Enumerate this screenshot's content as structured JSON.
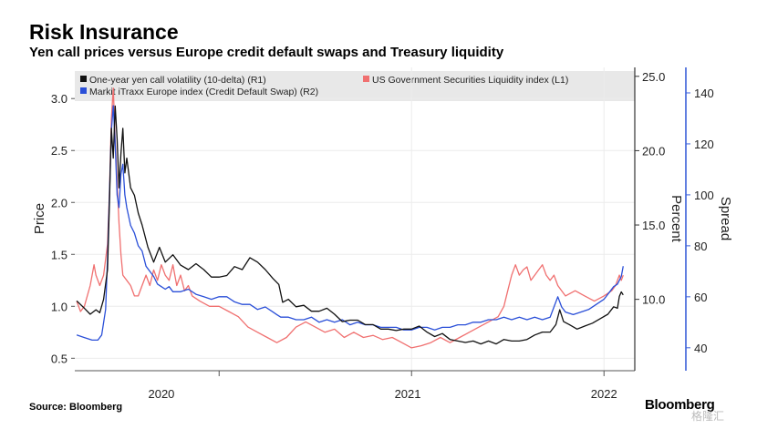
{
  "header": {
    "title": "Risk Insurance",
    "subtitle": "Yen call prices versus Europe credit default swaps and Treasury liquidity"
  },
  "footer": {
    "source": "Source: Bloomberg",
    "brand": "Bloomberg",
    "watermark": "格隆汇"
  },
  "chart_data": {
    "type": "line",
    "x_ticks": [
      "2020",
      "2021",
      "2022"
    ],
    "x_range": [
      2019.25,
      2022.16
    ],
    "axes": {
      "left": {
        "label": "Price",
        "range": [
          0.38,
          3.3
        ],
        "ticks": [
          "0.5",
          "1.0",
          "1.5",
          "2.0",
          "2.5",
          "3.0"
        ]
      },
      "right1": {
        "label": "Percent",
        "range": [
          5.2,
          25.6
        ],
        "ticks": [
          "10.0",
          "15.0",
          "20.0",
          "25.0"
        ]
      },
      "right2": {
        "label": "Spread",
        "range": [
          31,
          150
        ],
        "ticks": [
          "40",
          "60",
          "80",
          "100",
          "120",
          "140"
        ],
        "color": "#3a5fd9"
      }
    },
    "legend": {
      "placement": "top",
      "entries": [
        "One-year yen call volatility (10-delta)    (R1)",
        "US Government Securities Liquidity index (L1)",
        "Markit iTraxx Europe index (Credit Default Swap) (R2)"
      ]
    },
    "colors": {
      "black": "#111111",
      "red": "#f07070",
      "blue": "#2a4fd8"
    },
    "series": [
      {
        "color": "black",
        "axis": "right1",
        "points": [
          [
            2019.26,
            9.9
          ],
          [
            2019.3,
            9.4
          ],
          [
            2019.33,
            9.0
          ],
          [
            2019.36,
            9.3
          ],
          [
            2019.38,
            9.1
          ],
          [
            2019.4,
            10.0
          ],
          [
            2019.42,
            12.0
          ],
          [
            2019.43,
            16.5
          ],
          [
            2019.44,
            21.5
          ],
          [
            2019.45,
            19.5
          ],
          [
            2019.46,
            23.0
          ],
          [
            2019.47,
            20.8
          ],
          [
            2019.48,
            17.5
          ],
          [
            2019.49,
            19.8
          ],
          [
            2019.5,
            21.5
          ],
          [
            2019.51,
            18.5
          ],
          [
            2019.52,
            19.5
          ],
          [
            2019.54,
            17.5
          ],
          [
            2019.56,
            17.0
          ],
          [
            2019.58,
            15.8
          ],
          [
            2019.6,
            15.0
          ],
          [
            2019.63,
            13.5
          ],
          [
            2019.66,
            12.5
          ],
          [
            2019.69,
            13.5
          ],
          [
            2019.72,
            12.5
          ],
          [
            2019.76,
            13.0
          ],
          [
            2019.8,
            12.3
          ],
          [
            2019.84,
            12.0
          ],
          [
            2019.88,
            12.4
          ],
          [
            2019.92,
            12.0
          ],
          [
            2019.96,
            11.5
          ],
          [
            2020.0,
            11.5
          ],
          [
            2020.04,
            11.6
          ],
          [
            2020.08,
            12.2
          ],
          [
            2020.12,
            12.0
          ],
          [
            2020.16,
            12.8
          ],
          [
            2020.2,
            12.5
          ],
          [
            2020.24,
            12.0
          ],
          [
            2020.28,
            11.4
          ],
          [
            2020.31,
            11.0
          ],
          [
            2020.33,
            9.8
          ],
          [
            2020.36,
            10.0
          ],
          [
            2020.4,
            9.5
          ],
          [
            2020.44,
            9.6
          ],
          [
            2020.48,
            9.2
          ],
          [
            2020.52,
            9.2
          ],
          [
            2020.56,
            9.4
          ],
          [
            2020.6,
            9.0
          ],
          [
            2020.64,
            8.5
          ],
          [
            2020.68,
            8.6
          ],
          [
            2020.72,
            8.6
          ],
          [
            2020.76,
            8.3
          ],
          [
            2020.8,
            8.3
          ],
          [
            2020.84,
            8.0
          ],
          [
            2020.88,
            8.0
          ],
          [
            2020.92,
            7.9
          ],
          [
            2020.96,
            8.0
          ],
          [
            2021.0,
            8.0
          ],
          [
            2021.04,
            8.2
          ],
          [
            2021.08,
            7.8
          ],
          [
            2021.12,
            7.5
          ],
          [
            2021.16,
            7.7
          ],
          [
            2021.2,
            7.3
          ],
          [
            2021.24,
            7.2
          ],
          [
            2021.28,
            7.1
          ],
          [
            2021.32,
            7.2
          ],
          [
            2021.36,
            7.0
          ],
          [
            2021.4,
            7.2
          ],
          [
            2021.44,
            7.0
          ],
          [
            2021.48,
            7.3
          ],
          [
            2021.52,
            7.2
          ],
          [
            2021.56,
            7.2
          ],
          [
            2021.6,
            7.3
          ],
          [
            2021.64,
            7.6
          ],
          [
            2021.68,
            7.8
          ],
          [
            2021.72,
            7.8
          ],
          [
            2021.75,
            8.3
          ],
          [
            2021.77,
            9.3
          ],
          [
            2021.79,
            8.5
          ],
          [
            2021.82,
            8.3
          ],
          [
            2021.86,
            8.0
          ],
          [
            2021.9,
            8.2
          ],
          [
            2021.94,
            8.4
          ],
          [
            2021.98,
            8.7
          ],
          [
            2022.02,
            9.0
          ],
          [
            2022.05,
            9.5
          ],
          [
            2022.07,
            9.4
          ],
          [
            2022.08,
            10.2
          ],
          [
            2022.09,
            10.5
          ],
          [
            2022.1,
            10.3
          ]
        ]
      },
      {
        "color": "red",
        "axis": "left",
        "points": [
          [
            2019.26,
            1.05
          ],
          [
            2019.28,
            0.95
          ],
          [
            2019.3,
            1.0
          ],
          [
            2019.33,
            1.2
          ],
          [
            2019.35,
            1.4
          ],
          [
            2019.36,
            1.3
          ],
          [
            2019.38,
            1.2
          ],
          [
            2019.4,
            1.3
          ],
          [
            2019.42,
            1.6
          ],
          [
            2019.43,
            2.1
          ],
          [
            2019.44,
            2.8
          ],
          [
            2019.45,
            3.1
          ],
          [
            2019.46,
            2.6
          ],
          [
            2019.47,
            2.2
          ],
          [
            2019.48,
            1.8
          ],
          [
            2019.49,
            1.5
          ],
          [
            2019.5,
            1.3
          ],
          [
            2019.52,
            1.25
          ],
          [
            2019.54,
            1.2
          ],
          [
            2019.56,
            1.1
          ],
          [
            2019.58,
            1.1
          ],
          [
            2019.6,
            1.2
          ],
          [
            2019.62,
            1.3
          ],
          [
            2019.64,
            1.2
          ],
          [
            2019.66,
            1.35
          ],
          [
            2019.68,
            1.25
          ],
          [
            2019.7,
            1.4
          ],
          [
            2019.72,
            1.3
          ],
          [
            2019.74,
            1.25
          ],
          [
            2019.76,
            1.4
          ],
          [
            2019.78,
            1.2
          ],
          [
            2019.8,
            1.3
          ],
          [
            2019.82,
            1.15
          ],
          [
            2019.84,
            1.2
          ],
          [
            2019.86,
            1.1
          ],
          [
            2019.9,
            1.05
          ],
          [
            2019.95,
            1.0
          ],
          [
            2020.0,
            1.0
          ],
          [
            2020.05,
            0.95
          ],
          [
            2020.1,
            0.9
          ],
          [
            2020.15,
            0.8
          ],
          [
            2020.2,
            0.75
          ],
          [
            2020.25,
            0.7
          ],
          [
            2020.3,
            0.65
          ],
          [
            2020.35,
            0.7
          ],
          [
            2020.4,
            0.8
          ],
          [
            2020.45,
            0.85
          ],
          [
            2020.5,
            0.8
          ],
          [
            2020.55,
            0.75
          ],
          [
            2020.6,
            0.78
          ],
          [
            2020.65,
            0.7
          ],
          [
            2020.7,
            0.75
          ],
          [
            2020.75,
            0.7
          ],
          [
            2020.8,
            0.72
          ],
          [
            2020.85,
            0.68
          ],
          [
            2020.9,
            0.7
          ],
          [
            2020.95,
            0.65
          ],
          [
            2021.0,
            0.6
          ],
          [
            2021.05,
            0.62
          ],
          [
            2021.1,
            0.65
          ],
          [
            2021.15,
            0.7
          ],
          [
            2021.2,
            0.65
          ],
          [
            2021.25,
            0.7
          ],
          [
            2021.3,
            0.75
          ],
          [
            2021.35,
            0.8
          ],
          [
            2021.4,
            0.85
          ],
          [
            2021.45,
            0.9
          ],
          [
            2021.48,
            1.0
          ],
          [
            2021.5,
            1.15
          ],
          [
            2021.52,
            1.3
          ],
          [
            2021.54,
            1.4
          ],
          [
            2021.56,
            1.3
          ],
          [
            2021.58,
            1.35
          ],
          [
            2021.6,
            1.38
          ],
          [
            2021.62,
            1.25
          ],
          [
            2021.64,
            1.3
          ],
          [
            2021.66,
            1.35
          ],
          [
            2021.68,
            1.4
          ],
          [
            2021.7,
            1.3
          ],
          [
            2021.72,
            1.25
          ],
          [
            2021.74,
            1.3
          ],
          [
            2021.76,
            1.2
          ],
          [
            2021.78,
            1.15
          ],
          [
            2021.8,
            1.1
          ],
          [
            2021.85,
            1.15
          ],
          [
            2021.9,
            1.1
          ],
          [
            2021.95,
            1.05
          ],
          [
            2022.0,
            1.1
          ],
          [
            2022.04,
            1.15
          ],
          [
            2022.06,
            1.2
          ],
          [
            2022.08,
            1.3
          ],
          [
            2022.09,
            1.25
          ],
          [
            2022.1,
            1.3
          ]
        ]
      },
      {
        "color": "blue",
        "axis": "right2",
        "points": [
          [
            2019.26,
            45
          ],
          [
            2019.3,
            44
          ],
          [
            2019.34,
            43
          ],
          [
            2019.37,
            43
          ],
          [
            2019.39,
            45
          ],
          [
            2019.41,
            55
          ],
          [
            2019.42,
            75
          ],
          [
            2019.43,
            100
          ],
          [
            2019.44,
            125
          ],
          [
            2019.45,
            135
          ],
          [
            2019.46,
            120
          ],
          [
            2019.47,
            100
          ],
          [
            2019.48,
            95
          ],
          [
            2019.49,
            108
          ],
          [
            2019.5,
            112
          ],
          [
            2019.51,
            100
          ],
          [
            2019.52,
            95
          ],
          [
            2019.54,
            88
          ],
          [
            2019.56,
            85
          ],
          [
            2019.58,
            80
          ],
          [
            2019.6,
            78
          ],
          [
            2019.62,
            72
          ],
          [
            2019.64,
            70
          ],
          [
            2019.66,
            68
          ],
          [
            2019.68,
            65
          ],
          [
            2019.7,
            64
          ],
          [
            2019.72,
            63
          ],
          [
            2019.74,
            64
          ],
          [
            2019.76,
            62
          ],
          [
            2019.8,
            62
          ],
          [
            2019.84,
            63
          ],
          [
            2019.88,
            61
          ],
          [
            2019.92,
            60
          ],
          [
            2019.96,
            59
          ],
          [
            2020.0,
            60
          ],
          [
            2020.04,
            60
          ],
          [
            2020.08,
            58
          ],
          [
            2020.12,
            57
          ],
          [
            2020.16,
            57
          ],
          [
            2020.2,
            55
          ],
          [
            2020.24,
            56
          ],
          [
            2020.28,
            54
          ],
          [
            2020.3,
            53
          ],
          [
            2020.32,
            52
          ],
          [
            2020.36,
            52
          ],
          [
            2020.4,
            51
          ],
          [
            2020.44,
            51
          ],
          [
            2020.48,
            52
          ],
          [
            2020.52,
            50
          ],
          [
            2020.56,
            51
          ],
          [
            2020.6,
            50
          ],
          [
            2020.64,
            51
          ],
          [
            2020.68,
            49
          ],
          [
            2020.72,
            50
          ],
          [
            2020.76,
            49
          ],
          [
            2020.8,
            49
          ],
          [
            2020.84,
            48
          ],
          [
            2020.88,
            48
          ],
          [
            2020.92,
            48
          ],
          [
            2020.96,
            47
          ],
          [
            2021.0,
            47
          ],
          [
            2021.04,
            48
          ],
          [
            2021.08,
            48
          ],
          [
            2021.12,
            47
          ],
          [
            2021.16,
            48
          ],
          [
            2021.2,
            48
          ],
          [
            2021.24,
            49
          ],
          [
            2021.28,
            49
          ],
          [
            2021.32,
            50
          ],
          [
            2021.36,
            50
          ],
          [
            2021.4,
            51
          ],
          [
            2021.44,
            51
          ],
          [
            2021.48,
            52
          ],
          [
            2021.52,
            51
          ],
          [
            2021.56,
            52
          ],
          [
            2021.6,
            51
          ],
          [
            2021.64,
            52
          ],
          [
            2021.68,
            51
          ],
          [
            2021.72,
            52
          ],
          [
            2021.74,
            56
          ],
          [
            2021.76,
            60
          ],
          [
            2021.78,
            56
          ],
          [
            2021.8,
            54
          ],
          [
            2021.84,
            53
          ],
          [
            2021.88,
            54
          ],
          [
            2021.92,
            55
          ],
          [
            2021.96,
            57
          ],
          [
            2022.0,
            59
          ],
          [
            2022.03,
            62
          ],
          [
            2022.05,
            64
          ],
          [
            2022.07,
            65
          ],
          [
            2022.09,
            68
          ],
          [
            2022.1,
            72
          ]
        ]
      }
    ]
  }
}
